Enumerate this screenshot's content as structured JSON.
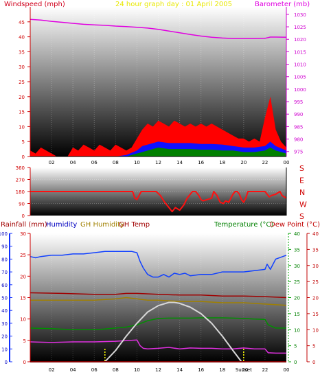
{
  "top_chart": {
    "left_label": "Windspeed (mph)",
    "center_title": "24 hour graph day : 01 April 2005",
    "right_label": "Barometer (mb)",
    "left_ticks": [
      "0",
      "5",
      "10",
      "15",
      "20",
      "25",
      "30",
      "35",
      "40",
      "45"
    ],
    "right_ticks": [
      "975",
      "980",
      "985",
      "990",
      "995",
      "1000",
      "1005",
      "1010",
      "1015",
      "1020",
      "1025",
      "1030"
    ],
    "x_ticks": [
      "02",
      "04",
      "06",
      "08",
      "10",
      "12",
      "14",
      "16",
      "18",
      "20",
      "22",
      "00"
    ]
  },
  "direction_chart": {
    "left_ticks": [
      "0",
      "90",
      "180",
      "270",
      "360"
    ],
    "right_labels": [
      "S",
      "E",
      "N",
      "W",
      "S"
    ],
    "x_ticks": [
      "02",
      "04",
      "06",
      "08",
      "10",
      "12",
      "14",
      "16",
      "18",
      "20",
      "22",
      "00"
    ]
  },
  "bottom_chart": {
    "labels": {
      "rainfall": "Rainfall (mm)",
      "humidity": "Humidity",
      "gh_humidity": "GH Humidity",
      "gh_temp": "GH Temp",
      "temperature": "Temperature (°C)",
      "dew_point": "Dew Point (°C)"
    },
    "humidity_ticks": [
      "0",
      "10",
      "20",
      "30",
      "40",
      "50",
      "60",
      "70",
      "80",
      "90",
      "100"
    ],
    "rainfall_ticks": [
      "0",
      "5",
      "10",
      "15",
      "20",
      "25",
      "30"
    ],
    "temp_ticks": [
      "0",
      "5",
      "10",
      "15",
      "20",
      "25",
      "30",
      "35",
      "40"
    ],
    "x_ticks": [
      "02",
      "04",
      "06",
      "08",
      "10",
      "12",
      "14",
      "16",
      "18",
      "Sunset",
      "22",
      "00"
    ],
    "x_overlay_label": "20"
  },
  "colors": {
    "windspeed_label": "#d0001c",
    "title": "#e8e800",
    "barometer": "#e000e0",
    "wind_gust": "#ff0000",
    "wind_avg": "#1010ff",
    "wind_low": "#008000",
    "direction": "#ff1010",
    "humidity": "#1040ff",
    "gh_humidity": "#a08000",
    "gh_temp": "#a00000",
    "temperature": "#009000",
    "dew_point": "#d00000",
    "solar": "#d8d8d8"
  },
  "chart_data": [
    {
      "type": "area",
      "title": "24 hour graph day : 01 April 2005",
      "xlabel": "",
      "ylabel": "Windspeed (mph)",
      "y2label": "Barometer (mb)",
      "ylim": [
        0,
        50
      ],
      "y2lim": [
        973,
        1033
      ],
      "xlim": [
        0,
        24
      ],
      "grid": false,
      "series": [
        {
          "name": "Barometer (mb)",
          "axis": "right",
          "x": [
            0,
            1,
            2,
            3,
            4,
            5,
            6,
            7,
            8,
            9,
            10,
            11,
            12,
            13,
            14,
            15,
            16,
            17,
            18,
            19,
            20,
            21,
            22,
            22.5,
            23,
            24
          ],
          "values": [
            1028,
            1027.7,
            1027.2,
            1026.8,
            1026.4,
            1026.0,
            1025.8,
            1025.6,
            1025.3,
            1025.1,
            1024.8,
            1024.5,
            1024.0,
            1023.3,
            1022.6,
            1021.9,
            1021.3,
            1020.8,
            1020.5,
            1020.3,
            1020.3,
            1020.3,
            1020.4,
            1020.9,
            1020.9,
            1020.8
          ]
        },
        {
          "name": "Windspeed gust (mph)",
          "axis": "left",
          "x": [
            0,
            0.5,
            1,
            1.5,
            2,
            2.5,
            3,
            3.5,
            4,
            4.5,
            5,
            5.5,
            6,
            6.5,
            7,
            7.5,
            8,
            8.5,
            9,
            9.5,
            10,
            10.5,
            11,
            11.5,
            12,
            12.5,
            13,
            13.5,
            14,
            14.5,
            15,
            15.5,
            16,
            16.5,
            17,
            17.5,
            18,
            18.5,
            19,
            19.5,
            20,
            20.5,
            21,
            21.5,
            22,
            22.5,
            23,
            23.5,
            24
          ],
          "values": [
            2,
            1,
            3,
            2,
            1,
            0,
            0,
            0,
            3,
            2,
            4,
            3,
            2,
            4,
            3,
            2,
            4,
            3,
            2,
            3,
            6,
            9,
            11,
            10,
            12,
            11,
            10,
            12,
            11,
            10,
            11,
            10,
            11,
            10,
            11,
            10,
            9,
            8,
            7,
            6,
            6,
            5,
            6,
            5,
            13,
            20,
            9,
            5,
            3
          ]
        },
        {
          "name": "Windspeed average (mph)",
          "axis": "left",
          "x": [
            0,
            2,
            4,
            6,
            8,
            9,
            10,
            10.5,
            11,
            12,
            13,
            14,
            15,
            16,
            17,
            18,
            19,
            20,
            21,
            22,
            22.5,
            23,
            24
          ],
          "values": [
            0,
            0,
            0,
            0,
            0,
            0.5,
            2,
            3.5,
            4,
            5,
            4.5,
            4.5,
            4.5,
            4.2,
            4.2,
            4,
            3.5,
            3,
            3,
            3.5,
            5,
            3.5,
            2
          ]
        },
        {
          "name": "Windspeed low (mph)",
          "axis": "left",
          "x": [
            0,
            2,
            4,
            6,
            8,
            9,
            10,
            10.5,
            11,
            12,
            13,
            14,
            15,
            16,
            17,
            18,
            19,
            20,
            21,
            22,
            22.5,
            23,
            24
          ],
          "values": [
            0,
            0,
            0,
            0,
            0,
            0,
            1,
            1.5,
            2,
            3,
            2.5,
            2.5,
            2.5,
            2.3,
            2.3,
            2,
            2,
            1.5,
            1.5,
            2,
            3,
            2,
            1
          ]
        }
      ],
      "x_tick_labels": [
        "02",
        "04",
        "06",
        "08",
        "10",
        "12",
        "14",
        "16",
        "18",
        "20",
        "22",
        "00"
      ]
    },
    {
      "type": "line",
      "title": "",
      "ylabel": "",
      "ylim": [
        0,
        360
      ],
      "xlim": [
        0,
        24
      ],
      "series": [
        {
          "name": "Wind direction",
          "x": [
            0,
            9.6,
            9.8,
            10,
            10.2,
            10.4,
            11.8,
            12.2,
            12.6,
            13,
            13.3,
            13.6,
            14,
            14.4,
            14.7,
            15.2,
            15.5,
            15.8,
            16,
            16.2,
            17,
            17.2,
            17.5,
            17.8,
            18.1,
            18.3,
            18.6,
            19,
            19.2,
            19.4,
            19.6,
            19.8,
            20,
            20.2,
            20.4,
            20.6,
            22,
            22.4,
            22.6,
            23,
            23.2,
            23.4,
            23.6,
            24
          ],
          "values": [
            180,
            180,
            130,
            120,
            150,
            180,
            180,
            150,
            100,
            60,
            30,
            60,
            40,
            80,
            130,
            180,
            180,
            150,
            120,
            110,
            130,
            180,
            150,
            100,
            90,
            110,
            100,
            160,
            180,
            180,
            160,
            120,
            100,
            130,
            180,
            180,
            180,
            140,
            150,
            160,
            170,
            180,
            150,
            130
          ]
        }
      ],
      "y_tick_labels": [
        "0",
        "90",
        "180",
        "270",
        "360"
      ],
      "right_labels": [
        "S",
        "E",
        "N",
        "W",
        "S"
      ],
      "x_tick_labels": [
        "02",
        "04",
        "06",
        "08",
        "10",
        "12",
        "14",
        "16",
        "18",
        "20",
        "22",
        "00"
      ]
    },
    {
      "type": "line",
      "title": "",
      "xlim": [
        0,
        24
      ],
      "axes": {
        "humidity": {
          "label": "Humidity",
          "lim": [
            0,
            100
          ]
        },
        "rainfall": {
          "label": "Rainfall (mm)",
          "lim": [
            0,
            30
          ]
        },
        "temperature": {
          "label": "Temperature (°C)",
          "lim": [
            0,
            40
          ]
        },
        "dew_point": {
          "label": "Dew Point (°C)",
          "lim": [
            0,
            40
          ]
        }
      },
      "series": [
        {
          "name": "Humidity",
          "axis": "humidity",
          "x": [
            0,
            0.5,
            1,
            2,
            3,
            4,
            5,
            6,
            7,
            8,
            9,
            9.5,
            10,
            10.3,
            10.6,
            11,
            11.5,
            12,
            12.5,
            13,
            13.5,
            14,
            14.5,
            15,
            16,
            17,
            18,
            19,
            20,
            21,
            22,
            22.2,
            22.5,
            23,
            24
          ],
          "values": [
            82,
            81,
            82,
            83,
            83,
            84,
            84,
            85,
            86,
            86,
            86,
            86,
            85,
            78,
            73,
            68,
            66,
            66,
            68,
            66,
            69,
            68,
            69,
            67,
            68,
            68,
            70,
            70,
            70,
            71,
            72,
            76,
            72,
            80,
            83
          ]
        },
        {
          "name": "GH Humidity",
          "axis": "humidity",
          "x": [
            0,
            3,
            6,
            8,
            9,
            10,
            11,
            12,
            14,
            16,
            18,
            20,
            22,
            24
          ],
          "values": [
            48,
            48,
            48,
            49,
            50,
            49,
            48,
            48,
            47,
            47,
            46,
            46,
            45,
            44
          ]
        },
        {
          "name": "GH Temp",
          "axis": "temperature",
          "x": [
            0,
            3,
            6,
            8,
            9,
            10,
            12,
            14,
            16,
            18,
            20,
            22,
            24
          ],
          "values": [
            21.5,
            21.3,
            21.0,
            21.0,
            21.3,
            21.3,
            21.0,
            20.8,
            20.8,
            20.5,
            20.5,
            20.3,
            20.0
          ]
        },
        {
          "name": "Temperature (°C)",
          "axis": "temperature",
          "x": [
            0,
            2,
            4,
            6,
            7,
            8,
            9,
            10,
            11,
            12,
            13,
            14,
            15,
            16,
            17,
            18,
            19,
            20,
            21,
            22,
            22.3,
            23,
            24
          ],
          "values": [
            10.5,
            10.3,
            10.0,
            10.0,
            10.2,
            10.5,
            10.8,
            11.5,
            12.8,
            13.5,
            13.6,
            13.6,
            13.6,
            13.7,
            13.7,
            13.7,
            13.6,
            13.5,
            13.3,
            13.2,
            11.5,
            10.5,
            10.5
          ]
        },
        {
          "name": "Dew Point (°C)",
          "axis": "dew_point",
          "x": [
            0,
            2,
            4,
            6,
            8,
            10,
            10.3,
            10.6,
            11,
            12,
            13,
            14,
            15,
            16,
            17,
            18,
            19,
            20,
            21,
            22,
            22.3,
            23,
            24
          ],
          "values": [
            6.2,
            6.0,
            6.2,
            6.2,
            6.4,
            6.8,
            5.0,
            4.2,
            4.0,
            4.2,
            4.5,
            4.0,
            4.3,
            4.2,
            4.2,
            4.0,
            4.0,
            4.3,
            4.0,
            4.0,
            2.8,
            2.7,
            2.7
          ]
        },
        {
          "name": "Solar",
          "axis": "temperature",
          "x": [
            7,
            8,
            9,
            10,
            11,
            12,
            13,
            13.5,
            14,
            15,
            16,
            17,
            18,
            19,
            19.8
          ],
          "values": [
            0,
            3.5,
            8,
            12,
            15.5,
            17.5,
            18.5,
            18.5,
            18.2,
            17,
            15,
            12,
            8,
            3.5,
            0
          ]
        },
        {
          "name": "Rainfall (mm)",
          "axis": "rainfall",
          "x": [
            0,
            24
          ],
          "values": [
            0,
            0
          ]
        }
      ],
      "markers": {
        "sunrise_hour": 7,
        "sunset_hour": 20
      },
      "x_tick_labels": [
        "02",
        "04",
        "06",
        "08",
        "10",
        "12",
        "14",
        "16",
        "18",
        "Sunset",
        "22",
        "00"
      ]
    }
  ]
}
